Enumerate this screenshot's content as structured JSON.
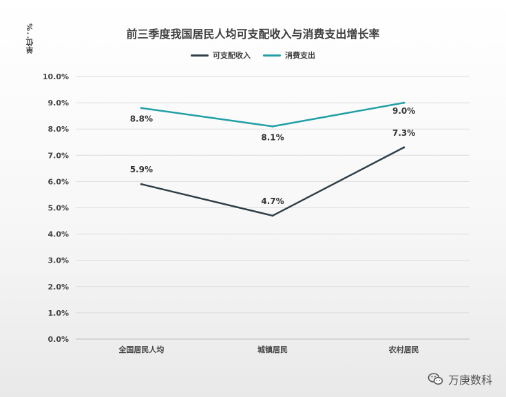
{
  "chart_data": {
    "type": "line",
    "title": "前三季度我国居民人均可支配收入与消费支出增长率",
    "unit_label": "单位：%",
    "categories": [
      "全国居民人均",
      "城镇居民",
      "农村居民"
    ],
    "ylim": [
      0,
      10
    ],
    "yticks": [
      "0.0%",
      "1.0%",
      "2.0%",
      "3.0%",
      "4.0%",
      "5.0%",
      "6.0%",
      "7.0%",
      "8.0%",
      "9.0%",
      "10.0%"
    ],
    "grid": true,
    "legend_position": "top-center",
    "series": [
      {
        "name": "可支配收入",
        "color": "#2f3f48",
        "values": [
          5.9,
          4.7,
          7.3
        ],
        "labels": [
          "5.9%",
          "4.7%",
          "7.3%"
        ]
      },
      {
        "name": "消费支出",
        "color": "#20a0a6",
        "values": [
          8.8,
          8.1,
          9.0
        ],
        "labels": [
          "8.8%",
          "8.1%",
          "9.0%"
        ]
      }
    ]
  },
  "watermark": {
    "text": "万庚数科",
    "icon": "wechat-icon"
  }
}
